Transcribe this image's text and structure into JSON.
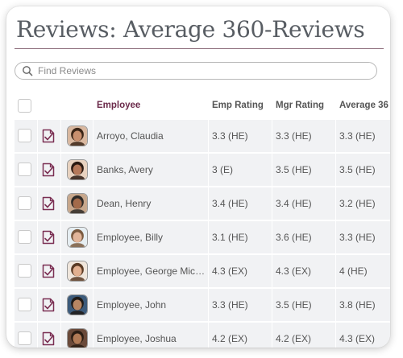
{
  "page": {
    "title": "Reviews: Average 360-Reviews",
    "search_placeholder": "Find Reviews"
  },
  "table": {
    "headers": {
      "employee": "Employee",
      "emp_rating": "Emp Rating",
      "mgr_rating": "Mgr Rating",
      "average": "Average 36"
    },
    "rows": [
      {
        "name": "Arroyo, Claudia",
        "emp_rating": "3.3 (HE)",
        "mgr_rating": "3.3 (HE)",
        "average": "3.3 (HE)",
        "avatar": {
          "skin": "#c98f6e",
          "hair": "#3a2416",
          "bg": "#d9b8a0"
        }
      },
      {
        "name": "Banks, Avery",
        "emp_rating": "3 (E)",
        "mgr_rating": "3.5 (HE)",
        "average": "3.5 (HE)",
        "avatar": {
          "skin": "#b5785a",
          "hair": "#2b1a12",
          "bg": "#e8d2c0"
        }
      },
      {
        "name": "Dean, Henry",
        "emp_rating": "3.4 (HE)",
        "mgr_rating": "3.4 (HE)",
        "average": "3.2 (HE)",
        "avatar": {
          "skin": "#a36a4a",
          "hair": "#2e2a27",
          "bg": "#c7a78c"
        }
      },
      {
        "name": "Employee, Billy",
        "emp_rating": "3.1 (HE)",
        "mgr_rating": "3.6 (HE)",
        "average": "3.3 (HE)",
        "avatar": {
          "skin": "#e2b59a",
          "hair": "#7a5a40",
          "bg": "#e6eef2"
        }
      },
      {
        "name": "Employee, George Mich…",
        "emp_rating": "4.3 (EX)",
        "mgr_rating": "4.3 (EX)",
        "average": "4 (HE)",
        "avatar": {
          "skin": "#e3b090",
          "hair": "#5a3a24",
          "bg": "#f0e6dc"
        }
      },
      {
        "name": "Employee, John",
        "emp_rating": "3.3 (HE)",
        "mgr_rating": "3.5 (HE)",
        "average": "3.8 (HE)",
        "avatar": {
          "skin": "#b88663",
          "hair": "#1f1a17",
          "bg": "#3c5a7a"
        }
      },
      {
        "name": "Employee, Joshua",
        "emp_rating": "4.2 (EX)",
        "mgr_rating": "4.2 (EX)",
        "average": "4.3 (EX)",
        "avatar": {
          "skin": "#b07a56",
          "hair": "#2a1d14",
          "bg": "#6a4a3a"
        }
      }
    ]
  },
  "colors": {
    "accent": "#6b2a4a",
    "row_bg": "#f1f2f4",
    "title": "#585d63"
  },
  "icons": {
    "search": "search-icon",
    "review": "review-doc-icon"
  }
}
